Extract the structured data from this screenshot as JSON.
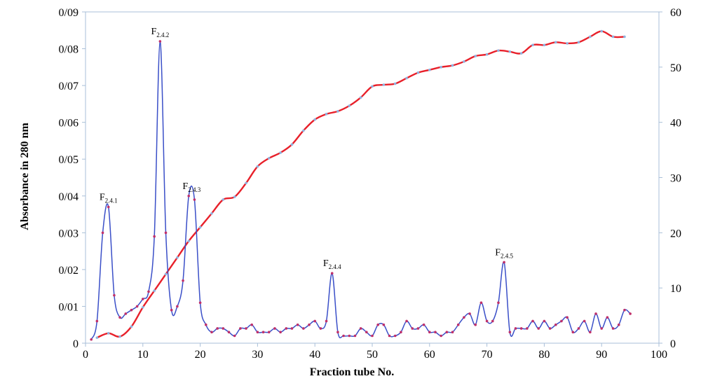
{
  "chart_data": {
    "type": "line",
    "xlabel": "Fraction tube No.",
    "ylabel": "Absorbance in 280 nm",
    "xlim": [
      0,
      100
    ],
    "ylim": [
      0,
      0.09
    ],
    "y2lim": [
      0,
      60
    ],
    "x_ticks": [
      "0",
      "10",
      "20",
      "30",
      "40",
      "50",
      "60",
      "70",
      "80",
      "90",
      "100"
    ],
    "y_ticks": [
      "0",
      "0/01",
      "0/02",
      "0/03",
      "0/04",
      "0/05",
      "0/06",
      "0/07",
      "0/08",
      "0/09"
    ],
    "y2_ticks": [
      "0",
      "10",
      "20",
      "30",
      "40",
      "50",
      "60"
    ],
    "grid": false,
    "colors": {
      "absorbance": "#3a4fc8",
      "gradient": "#e8202a",
      "axis": "#a9bfd8",
      "marker": "#c0306a",
      "marker2": "#8fb3e0"
    },
    "series": [
      {
        "axis": "left",
        "x": [
          1,
          2,
          3,
          4,
          5,
          6,
          7,
          8,
          9,
          10,
          11,
          12,
          13,
          14,
          15,
          16,
          17,
          18,
          19,
          20,
          21,
          22,
          23,
          24,
          25,
          26,
          27,
          28,
          29,
          30,
          31,
          32,
          33,
          34,
          35,
          36,
          37,
          38,
          39,
          40,
          41,
          42,
          43,
          44,
          45,
          46,
          47,
          48,
          49,
          50,
          51,
          52,
          53,
          54,
          55,
          56,
          57,
          58,
          59,
          60,
          61,
          62,
          63,
          64,
          65,
          66,
          67,
          68,
          69,
          70,
          71,
          72,
          73,
          74,
          75,
          76,
          77,
          78,
          79,
          80,
          81,
          82,
          83,
          84,
          85,
          86,
          87,
          88,
          89,
          90,
          91,
          92,
          93,
          94,
          95
        ],
        "values": [
          0.001,
          0.006,
          0.03,
          0.037,
          0.013,
          0.007,
          0.008,
          0.009,
          0.01,
          0.012,
          0.014,
          0.029,
          0.082,
          0.03,
          0.009,
          0.01,
          0.017,
          0.04,
          0.039,
          0.011,
          0.005,
          0.003,
          0.004,
          0.004,
          0.003,
          0.002,
          0.004,
          0.004,
          0.005,
          0.003,
          0.003,
          0.003,
          0.004,
          0.003,
          0.004,
          0.004,
          0.005,
          0.004,
          0.005,
          0.006,
          0.004,
          0.006,
          0.019,
          0.003,
          0.002,
          0.002,
          0.002,
          0.004,
          0.003,
          0.002,
          0.005,
          0.005,
          0.002,
          0.002,
          0.003,
          0.006,
          0.004,
          0.004,
          0.005,
          0.003,
          0.003,
          0.002,
          0.003,
          0.003,
          0.005,
          0.007,
          0.008,
          0.005,
          0.011,
          0.006,
          0.006,
          0.011,
          0.022,
          0.003,
          0.004,
          0.004,
          0.004,
          0.006,
          0.004,
          0.006,
          0.004,
          0.005,
          0.006,
          0.007,
          0.003,
          0.004,
          0.006,
          0.003,
          0.008,
          0.004,
          0.007,
          0.004,
          0.005,
          0.009,
          0.008
        ]
      },
      {
        "axis": "right",
        "x": [
          2,
          4,
          6,
          8,
          10,
          12,
          14,
          16,
          18,
          20,
          22,
          24,
          26,
          28,
          30,
          32,
          34,
          36,
          38,
          40,
          42,
          44,
          46,
          48,
          50,
          52,
          54,
          56,
          58,
          60,
          62,
          64,
          66,
          68,
          70,
          72,
          74,
          76,
          78,
          80,
          82,
          84,
          86,
          88,
          90,
          92,
          94
        ],
        "values": [
          1.0,
          1.8,
          1.2,
          3.0,
          6.5,
          9.5,
          12.5,
          15.5,
          18.5,
          21.0,
          23.5,
          26.0,
          26.5,
          29.0,
          32.0,
          33.5,
          34.5,
          36.0,
          38.5,
          40.5,
          41.5,
          42.0,
          43.0,
          44.5,
          46.5,
          46.8,
          47.0,
          48.0,
          49.0,
          49.5,
          50.0,
          50.3,
          51.0,
          52.0,
          52.3,
          53.0,
          52.8,
          52.5,
          54.0,
          54.0,
          54.5,
          54.3,
          54.5,
          55.5,
          56.5,
          55.5,
          55.5
        ]
      }
    ],
    "peaks": [
      {
        "main": "F",
        "sub": "2.4.1",
        "x": 4,
        "y": 0.037
      },
      {
        "main": "F",
        "sub": "2.4.2",
        "x": 13,
        "y": 0.082
      },
      {
        "main": "F",
        "sub": "2.4.3",
        "x": 18.5,
        "y": 0.04
      },
      {
        "main": "F",
        "sub": "2.4.4",
        "x": 43,
        "y": 0.019
      },
      {
        "main": "F",
        "sub": "2.4.5",
        "x": 73,
        "y": 0.022
      }
    ]
  }
}
